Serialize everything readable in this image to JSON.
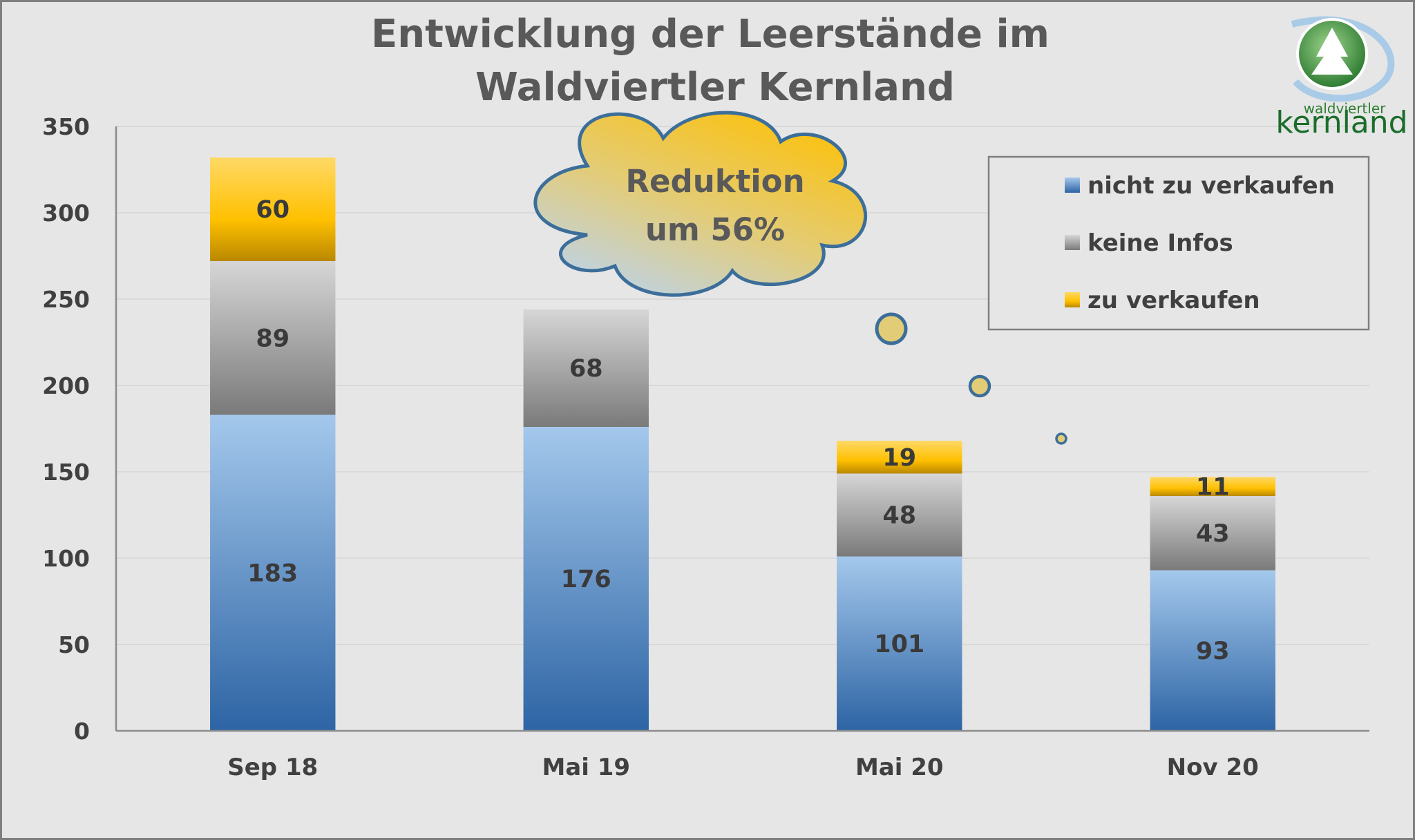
{
  "chart_data": {
    "type": "bar",
    "stacked": true,
    "title_lines": [
      "Entwicklung der Leerstände im",
      "Waldviertler Kernland"
    ],
    "categories": [
      "Sep 18",
      "Mai 19",
      "Mai 20",
      "Nov 20"
    ],
    "series": [
      {
        "name": "nicht zu verkaufen",
        "values": [
          183,
          176,
          101,
          93
        ],
        "color": "#3a77bd"
      },
      {
        "name": "keine Infos",
        "values": [
          89,
          68,
          48,
          43
        ],
        "color": "#8c8c8c"
      },
      {
        "name": "zu verkaufen",
        "values": [
          60,
          null,
          19,
          11
        ],
        "color": "#ffc000"
      }
    ],
    "ylim": [
      0,
      350
    ],
    "yticks": [
      0,
      50,
      100,
      150,
      200,
      250,
      300,
      350
    ],
    "grid": true,
    "legend_position": "top-right",
    "annotation_lines": [
      "Reduktion",
      "um 56%"
    ],
    "logo": {
      "line1": "waldviertler",
      "line2": "kernland"
    }
  }
}
